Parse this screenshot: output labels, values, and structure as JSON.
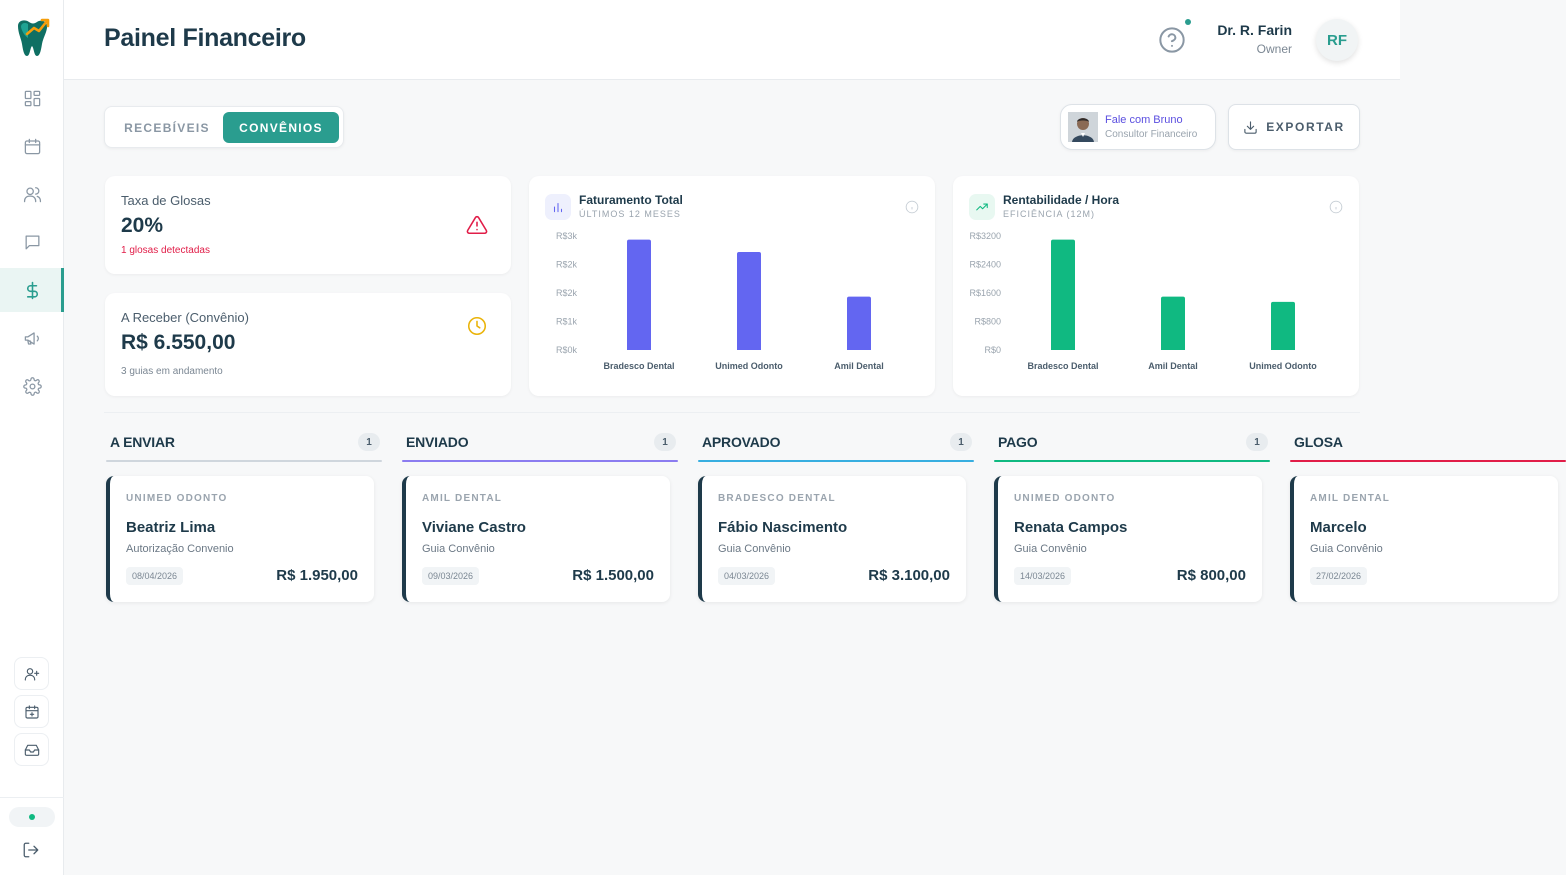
{
  "header": {
    "title": "Painel Financeiro",
    "user_name": "Dr. R. Farin",
    "user_role": "Owner",
    "avatar_initials": "RF"
  },
  "sidebar": {
    "nav_icons": [
      "dashboard-icon",
      "calendar-icon",
      "users-icon",
      "chat-icon",
      "dollar-icon",
      "megaphone-icon",
      "settings-icon"
    ],
    "active_item": "dollar-icon",
    "quick_actions": [
      "add-user-icon",
      "calendar-plus-icon",
      "inbox-icon"
    ]
  },
  "tabs": {
    "items": [
      "RECEBÍVEIS",
      "CONVÊNIOS"
    ],
    "active": "CONVÊNIOS"
  },
  "consultant": {
    "name": "Fale com Bruno",
    "role": "Consultor Financeiro"
  },
  "export_label": "EXPORTAR",
  "stats": {
    "glosas": {
      "label": "Taxa de Glosas",
      "value": "20%",
      "note": "1 glosas detectadas"
    },
    "receivable": {
      "label": "A Receber (Convênio)",
      "value": "R$ 6.550,00",
      "note": "3 guias em andamento"
    }
  },
  "chart_data": [
    {
      "type": "bar",
      "title": "Faturamento Total",
      "subtitle": "ÚLTIMOS 12 MESES",
      "categories": [
        "Bradesco Dental",
        "Unimed Odonto",
        "Amil Dental"
      ],
      "values": [
        3100,
        2750,
        1500
      ],
      "yticks": [
        "R$3k",
        "R$2k",
        "R$2k",
        "R$1k",
        "R$0k"
      ],
      "ylim": [
        0,
        3200
      ],
      "color": "#6366f1"
    },
    {
      "type": "bar",
      "title": "Rentabilidade / Hora",
      "subtitle": "EFICIÊNCIA (12M)",
      "categories": [
        "Bradesco Dental",
        "Amil Dental",
        "Unimed Odonto"
      ],
      "values": [
        3100,
        1500,
        1350
      ],
      "yticks": [
        "R$3200",
        "R$2400",
        "R$1600",
        "R$800",
        "R$0"
      ],
      "ylim": [
        0,
        3200
      ],
      "color": "#10b981"
    }
  ],
  "kanban": {
    "columns": [
      {
        "title": "A ENVIAR",
        "count": "1",
        "color": "#cfd6dd",
        "card": {
          "insurer": "UNIMED ODONTO",
          "patient": "Beatriz Lima",
          "type": "Autorização Convenio",
          "date": "08/04/2026",
          "amount": "R$ 1.950,00"
        }
      },
      {
        "title": "ENVIADO",
        "count": "1",
        "color": "#8b7cf0",
        "card": {
          "insurer": "AMIL DENTAL",
          "patient": "Viviane Castro",
          "type": "Guia Convênio",
          "date": "09/03/2026",
          "amount": "R$ 1.500,00"
        }
      },
      {
        "title": "APROVADO",
        "count": "1",
        "color": "#38aee0",
        "card": {
          "insurer": "BRADESCO DENTAL",
          "patient": "Fábio Nascimento",
          "type": "Guia Convênio",
          "date": "04/03/2026",
          "amount": "R$ 3.100,00"
        }
      },
      {
        "title": "PAGO",
        "count": "1",
        "color": "#10b981",
        "card": {
          "insurer": "UNIMED ODONTO",
          "patient": "Renata Campos",
          "type": "Guia Convênio",
          "date": "14/03/2026",
          "amount": "R$ 800,00"
        }
      },
      {
        "title": "GLOSA",
        "count": "",
        "color": "#e11d48",
        "card": {
          "insurer": "AMIL DENTAL",
          "patient": "Marcelo",
          "type": "Guia Convênio",
          "date": "27/02/2026",
          "amount": ""
        }
      }
    ]
  }
}
